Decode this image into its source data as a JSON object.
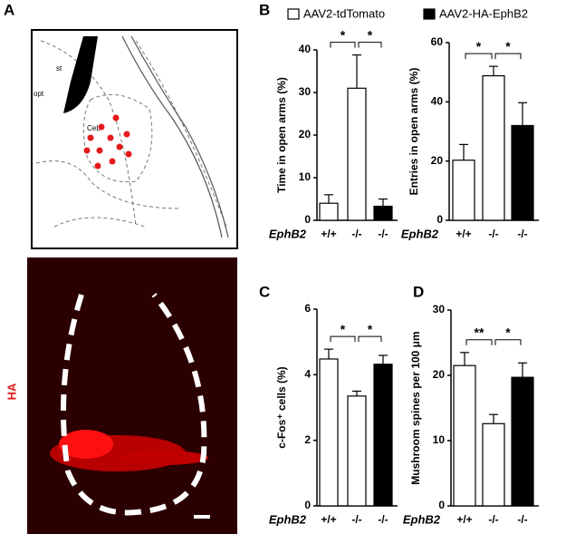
{
  "panel_labels": [
    "A",
    "B",
    "C",
    "D"
  ],
  "image_labels": {
    "stain": "HA",
    "atlas": [
      "st",
      "CeL",
      "opt"
    ]
  },
  "chart_data": [
    {
      "type": "bar",
      "ylabel": "Time in open arms (%)",
      "xlabel": "EphB2",
      "categories": [
        "+/+",
        "-/-",
        "-/-"
      ],
      "series": [
        {
          "name": "AAV2-tdTomato",
          "color": "#ffffff",
          "values": [
            4.0,
            31.0,
            null
          ],
          "errors": [
            2.0,
            7.8,
            null
          ]
        },
        {
          "name": "AAV2-HA-EphB2",
          "color": "#000000",
          "values": [
            null,
            null,
            3.3
          ],
          "errors": [
            null,
            null,
            1.7
          ]
        }
      ],
      "ylim": [
        0,
        40
      ],
      "yticks": [
        0,
        10,
        20,
        30,
        40
      ],
      "annotations": [
        "*",
        "*"
      ]
    },
    {
      "type": "bar",
      "ylabel": "Entries in open arms (%)",
      "xlabel": "EphB2",
      "categories": [
        "+/+",
        "-/-",
        "-/-"
      ],
      "series": [
        {
          "color": "#ffffff",
          "values": [
            20.3,
            48.8,
            null
          ],
          "errors": [
            5.3,
            3.2,
            null
          ]
        },
        {
          "color": "#000000",
          "values": [
            null,
            null,
            32.0
          ],
          "errors": [
            null,
            null,
            7.7
          ]
        }
      ],
      "ylim": [
        0,
        60
      ],
      "yticks": [
        0,
        20,
        40,
        60
      ],
      "annotations": [
        "*",
        "*"
      ]
    },
    {
      "type": "bar",
      "ylabel": "c-Fos⁺ cells (%)",
      "xlabel": "EphB2",
      "categories": [
        "+/+",
        "-/-",
        "-/-"
      ],
      "series": [
        {
          "color": "#ffffff",
          "values": [
            4.48,
            3.35,
            null
          ],
          "errors": [
            0.3,
            0.15,
            null
          ]
        },
        {
          "color": "#000000",
          "values": [
            null,
            null,
            4.32
          ],
          "errors": [
            null,
            null,
            0.27
          ]
        }
      ],
      "ylim": [
        0,
        6
      ],
      "yticks": [
        0,
        2,
        4,
        6
      ],
      "annotations": [
        "*",
        "*"
      ]
    },
    {
      "type": "bar",
      "ylabel": "Mushroom spines per 100 μm",
      "xlabel": "EphB2",
      "categories": [
        "+/+",
        "-/-",
        "-/-"
      ],
      "series": [
        {
          "color": "#ffffff",
          "values": [
            21.5,
            12.6,
            null
          ],
          "errors": [
            2.0,
            1.4,
            null
          ]
        },
        {
          "color": "#000000",
          "values": [
            null,
            null,
            19.7
          ],
          "errors": [
            null,
            null,
            2.2
          ]
        }
      ],
      "ylim": [
        0,
        30
      ],
      "yticks": [
        0,
        10,
        20,
        30
      ],
      "annotations": [
        "**",
        "*"
      ]
    }
  ]
}
